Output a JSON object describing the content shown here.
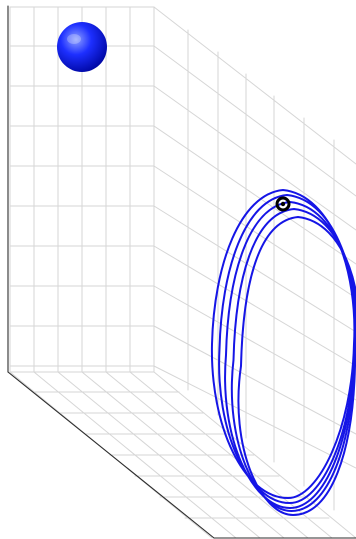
{
  "scene": {
    "kind": "3d-orbit-visualization",
    "colors": {
      "background": "#ffffff",
      "grid": "#d6d6d6",
      "frame": "#2d2d2d",
      "orbit": "#1515e6",
      "planet_light": "#8ea0ff",
      "planet_mid": "#1d2fff",
      "planet_dark": "#0008a6",
      "focal_marker": "#000000"
    },
    "orbit": {
      "loop_count": 5
    },
    "icons": {
      "planet": "blue-sphere-icon",
      "focus": "black-dot-icon"
    }
  }
}
